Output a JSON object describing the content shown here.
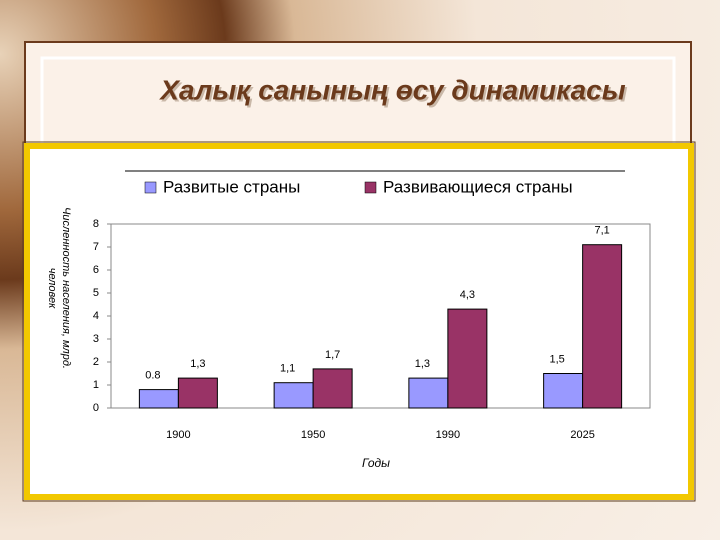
{
  "chart_data": {
    "type": "bar",
    "title": "Халық санының өсу динамикасы",
    "categories": [
      "1900",
      "1950",
      "1990",
      "2025"
    ],
    "series": [
      {
        "name": "Развитые страны",
        "color": "#9999ff",
        "values": [
          0.8,
          1.1,
          1.3,
          1.5
        ],
        "value_labels": [
          "0.8",
          "1,1",
          "1,3",
          "1,5"
        ]
      },
      {
        "name": "Развивающиеся страны",
        "color": "#993366",
        "values": [
          1.3,
          1.7,
          4.3,
          7.1
        ],
        "value_labels": [
          "1,3",
          "1,7",
          "4,3",
          "7,1"
        ]
      }
    ],
    "ylim": [
      0,
      8
    ],
    "yticks": [
      0,
      1,
      2,
      3,
      4,
      5,
      6,
      7,
      8
    ],
    "x_label": "Годы",
    "y_label": "Численность населения, млрд. человек",
    "legend": "top"
  }
}
